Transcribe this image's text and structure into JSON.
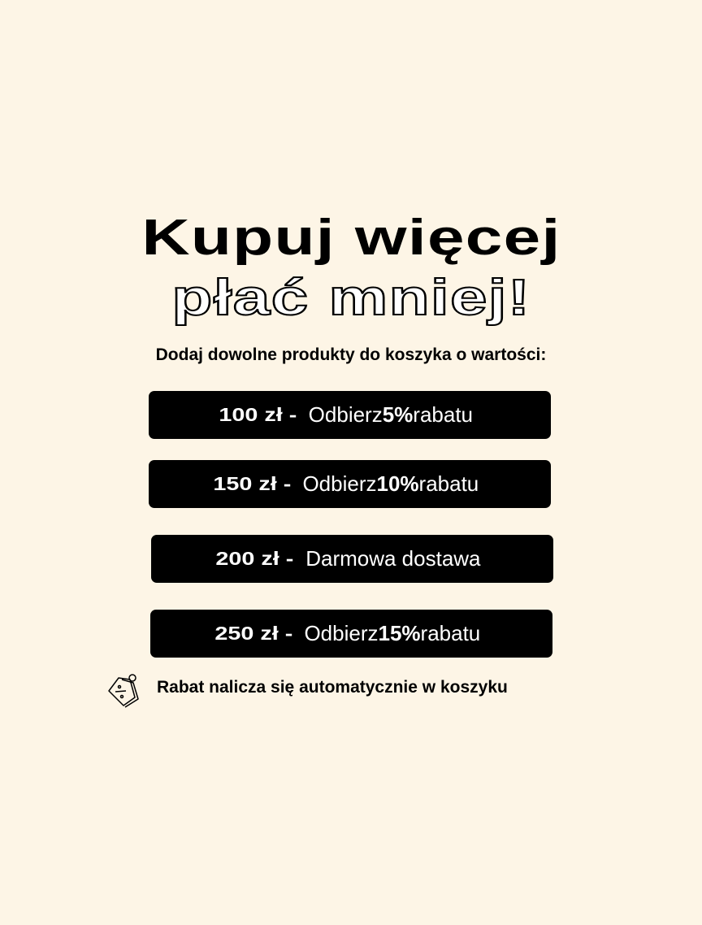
{
  "headline": {
    "line1": "Kupuj więcej",
    "line2": "płać mniej!"
  },
  "subtitle": "Dodaj dowolne produkty do koszyka o wartości:",
  "tiers": [
    {
      "amount": "100 zł -",
      "pre": "Odbierz ",
      "bold": "5%",
      "post": " rabatu"
    },
    {
      "amount": "150 zł -",
      "pre": "Odbierz ",
      "bold": "10%",
      "post": " rabatu"
    },
    {
      "amount": "200 zł -",
      "pre": "Darmowa dostawa",
      "bold": "",
      "post": ""
    },
    {
      "amount": "250 zł -",
      "pre": "Odbierz ",
      "bold": "15%",
      "post": " rabatu"
    }
  ],
  "note": {
    "icon": "discount-tag-icon",
    "text": "Rabat nalicza się automatycznie w koszyku"
  },
  "colors": {
    "background": "#fdf5e6",
    "tier_bg": "#000000",
    "tier_text": "#ffffff"
  }
}
